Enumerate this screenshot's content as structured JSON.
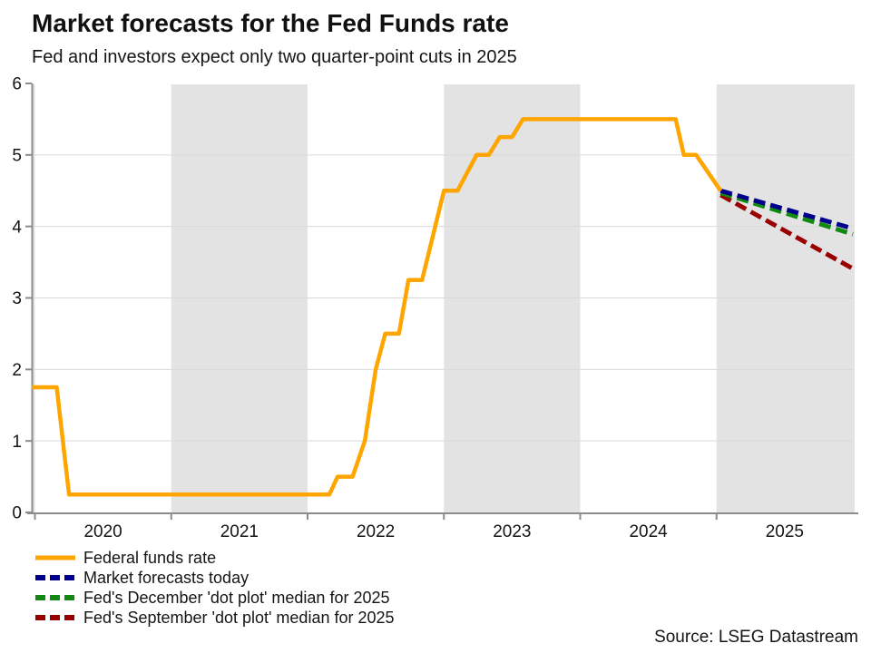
{
  "header": {
    "title": "Market forecasts for the Fed Funds rate",
    "subtitle": "Fed and investors expect only two quarter-point cuts in 2025"
  },
  "source": {
    "label": "Source: LSEG Datastream"
  },
  "chart_data": {
    "type": "line",
    "title": "Market forecasts for the Fed Funds rate",
    "subtitle": "Fed and investors expect only two quarter-point cuts in 2025",
    "x_axis": {
      "domain": [
        2019.977,
        2026.013
      ],
      "year_ticks": [
        2020,
        2021,
        2022,
        2023,
        2024,
        2025
      ],
      "period_label_positions": [
        2020.5,
        2021.5,
        2022.5,
        2023.5,
        2024.5,
        2025.5
      ],
      "period_labels": [
        "2020",
        "2021",
        "2022",
        "2023",
        "2024",
        "2025"
      ]
    },
    "y_axis": {
      "domain": [
        0,
        6
      ],
      "ticks": [
        0,
        1,
        2,
        3,
        4,
        5,
        6
      ]
    },
    "shaded_periods": [
      [
        2019.977,
        2020
      ],
      [
        2021,
        2022
      ],
      [
        2023,
        2024
      ],
      [
        2025,
        2026.013
      ]
    ],
    "grid": true,
    "legend_position": "bottom-left",
    "colors": {
      "band": "#E3E3E3",
      "gridline": "#D9D9D9",
      "axis": "#8C8C8C",
      "text": "#151515"
    },
    "series": [
      {
        "name": "Federal funds rate",
        "color": "#FFA500",
        "dashed": false,
        "points": [
          [
            2019.977,
            1.75
          ],
          [
            2020.16,
            1.75
          ],
          [
            2020.25,
            0.25
          ],
          [
            2022.16,
            0.25
          ],
          [
            2022.22,
            0.5
          ],
          [
            2022.33,
            0.5
          ],
          [
            2022.42,
            1.0
          ],
          [
            2022.5,
            2.0
          ],
          [
            2022.57,
            2.5
          ],
          [
            2022.67,
            2.5
          ],
          [
            2022.74,
            3.25
          ],
          [
            2022.84,
            3.25
          ],
          [
            2023.0,
            4.5
          ],
          [
            2023.1,
            4.5
          ],
          [
            2023.24,
            5.0
          ],
          [
            2023.33,
            5.0
          ],
          [
            2023.41,
            5.25
          ],
          [
            2023.5,
            5.25
          ],
          [
            2023.58,
            5.5
          ],
          [
            2024.7,
            5.5
          ],
          [
            2024.76,
            5.0
          ],
          [
            2024.85,
            5.0
          ],
          [
            2025.03,
            4.5
          ]
        ]
      },
      {
        "name": "Market forecasts today",
        "color": "#00008B",
        "dashed": true,
        "points": [
          [
            2025.03,
            4.5
          ],
          [
            2026.0,
            3.97
          ]
        ]
      },
      {
        "name": "Fed's December 'dot plot' median for 2025",
        "color": "#128A12",
        "dashed": true,
        "points": [
          [
            2025.03,
            4.47
          ],
          [
            2026.0,
            3.89
          ]
        ]
      },
      {
        "name": "Fed's September 'dot plot' median for 2025",
        "color": "#990000",
        "dashed": true,
        "points": [
          [
            2025.03,
            4.44
          ],
          [
            2026.0,
            3.41
          ]
        ]
      }
    ]
  }
}
